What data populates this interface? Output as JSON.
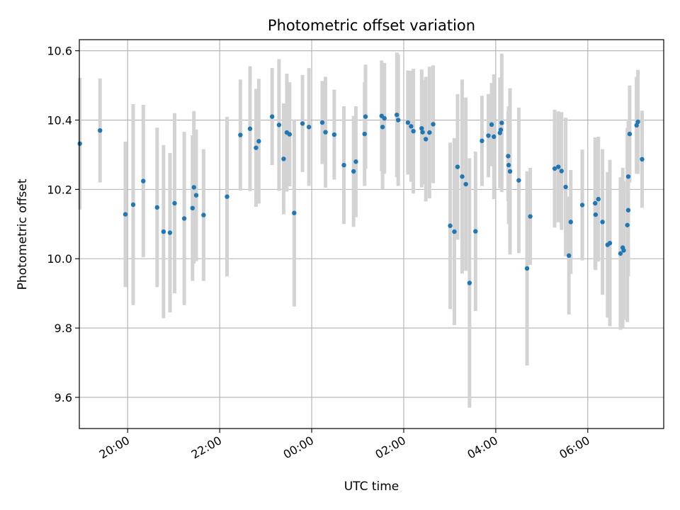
{
  "chart_data": {
    "type": "scatter",
    "title": "Photometric offset variation",
    "xlabel": "UTC time",
    "ylabel": "Photometric offset",
    "xlim": [
      -5.05,
      7.65
    ],
    "ylim": [
      9.51,
      10.632
    ],
    "grid": true,
    "legend": "none",
    "colors": {
      "points": "#1f77b4",
      "errorbars": "#d3d3d3"
    },
    "x_ticks": [
      {
        "value": -4,
        "label": "20:00"
      },
      {
        "value": -2,
        "label": "22:00"
      },
      {
        "value": 0,
        "label": "00:00"
      },
      {
        "value": 2,
        "label": "02:00"
      },
      {
        "value": 4,
        "label": "04:00"
      },
      {
        "value": 6,
        "label": "06:00"
      }
    ],
    "y_ticks": [
      {
        "value": 9.6,
        "label": "9.6"
      },
      {
        "value": 9.8,
        "label": "9.8"
      },
      {
        "value": 10.0,
        "label": "10.0"
      },
      {
        "value": 10.2,
        "label": "10.2"
      },
      {
        "value": 10.4,
        "label": "10.4"
      },
      {
        "value": 10.6,
        "label": "10.6"
      }
    ],
    "series": [
      {
        "x": [
          -5.04,
          -4.6,
          -4.05,
          -3.88,
          -3.66,
          -3.36,
          -3.22,
          -3.08,
          -2.98,
          -2.77,
          -2.59,
          -2.56,
          -2.51,
          -2.35,
          -1.84,
          -1.55,
          -1.34,
          -1.21,
          -1.15,
          -0.86,
          -0.71,
          -0.61,
          -0.54,
          -0.48,
          -0.38,
          -0.2,
          -0.06,
          0.23,
          0.3,
          0.49,
          0.7,
          0.91,
          0.96,
          1.15,
          1.17,
          1.52,
          1.54,
          1.58,
          1.85,
          1.88,
          2.09,
          2.16,
          2.21,
          2.39,
          2.41,
          2.48,
          2.56,
          2.64,
          3.01,
          3.1,
          3.17,
          3.27,
          3.35,
          3.43,
          3.56,
          3.7,
          3.84,
          3.91,
          3.96,
          4.09,
          4.11,
          4.13,
          4.27,
          4.28,
          4.31,
          4.5,
          4.68,
          4.75,
          5.28,
          5.36,
          5.43,
          5.52,
          5.59,
          5.63,
          5.88,
          6.16,
          6.17,
          6.23,
          6.32,
          6.43,
          6.48,
          6.71,
          6.76,
          6.78,
          6.86,
          6.88,
          6.88,
          6.91,
          7.06,
          7.09,
          7.18
        ],
        "y": [
          10.332,
          10.37,
          10.128,
          10.156,
          10.224,
          10.148,
          10.078,
          10.075,
          10.16,
          10.116,
          10.146,
          10.206,
          10.183,
          10.126,
          10.179,
          10.357,
          10.375,
          10.32,
          10.339,
          10.41,
          10.386,
          10.288,
          10.364,
          10.359,
          10.132,
          10.39,
          10.38,
          10.393,
          10.365,
          10.358,
          10.27,
          10.252,
          10.28,
          10.36,
          10.41,
          10.412,
          10.38,
          10.405,
          10.415,
          10.4,
          10.393,
          10.382,
          10.368,
          10.376,
          10.365,
          10.345,
          10.364,
          10.388,
          10.095,
          10.078,
          10.265,
          10.237,
          10.215,
          9.93,
          10.079,
          10.34,
          10.355,
          10.387,
          10.352,
          10.363,
          10.372,
          10.392,
          10.296,
          10.27,
          10.252,
          10.226,
          9.972,
          10.122,
          10.26,
          10.265,
          10.253,
          10.207,
          10.009,
          10.106,
          10.155,
          10.16,
          10.127,
          10.172,
          10.106,
          10.04,
          10.045,
          10.015,
          10.032,
          10.024,
          10.097,
          10.14,
          10.237,
          10.36,
          10.385,
          10.395,
          10.287
        ],
        "yerr": [
          0.19,
          0.15,
          0.21,
          0.29,
          0.22,
          0.23,
          0.25,
          0.23,
          0.26,
          0.25,
          0.21,
          0.22,
          0.19,
          0.19,
          0.23,
          0.16,
          0.18,
          0.17,
          0.18,
          0.14,
          0.19,
          0.16,
          0.17,
          0.15,
          0.27,
          0.14,
          0.17,
          0.12,
          0.16,
          0.13,
          0.17,
          0.16,
          0.16,
          0.15,
          0.15,
          0.16,
          0.18,
          0.16,
          0.18,
          0.19,
          0.15,
          0.16,
          0.18,
          0.17,
          0.15,
          0.18,
          0.19,
          0.17,
          0.24,
          0.27,
          0.21,
          0.28,
          0.25,
          0.36,
          0.23,
          0.13,
          0.12,
          0.12,
          0.18,
          0.16,
          0.15,
          0.2,
          0.13,
          0.17,
          0.24,
          0.21,
          0.28,
          0.14,
          0.17,
          0.16,
          0.17,
          0.2,
          0.17,
          0.15,
          0.16,
          0.19,
          0.16,
          0.18,
          0.21,
          0.21,
          0.24,
          0.22,
          0.23,
          0.2,
          0.28,
          0.19,
          0.16,
          0.14,
          0.14,
          0.15,
          0.14
        ]
      }
    ]
  }
}
